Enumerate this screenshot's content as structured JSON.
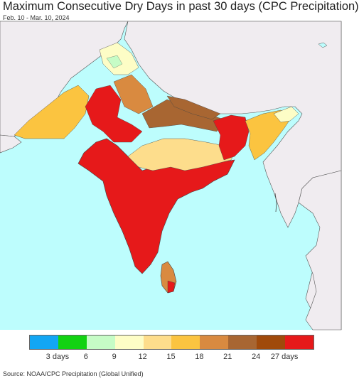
{
  "header": {
    "title": "Maximum Consecutive Dry Days in past 30 days (CPC Precipitation)",
    "date_range": "Feb. 10 - Mar. 10, 2024"
  },
  "map": {
    "ocean_color": "#bdfdfd",
    "other_land_color": "#f0ecf0",
    "border_color": "#444444"
  },
  "legend": {
    "colors": [
      "#12a6f3",
      "#12d212",
      "#c6fcc6",
      "#fdfdc6",
      "#fddd8c",
      "#fbc440",
      "#d98a40",
      "#a86632",
      "#a04a0b",
      "#e6191a"
    ],
    "labels": [
      "3 days",
      "6",
      "9",
      "12",
      "15",
      "18",
      "21",
      "24",
      "27 days"
    ]
  },
  "footer": {
    "source": "Source: NOAA/CPC Precipitation (Global Unified)"
  }
}
